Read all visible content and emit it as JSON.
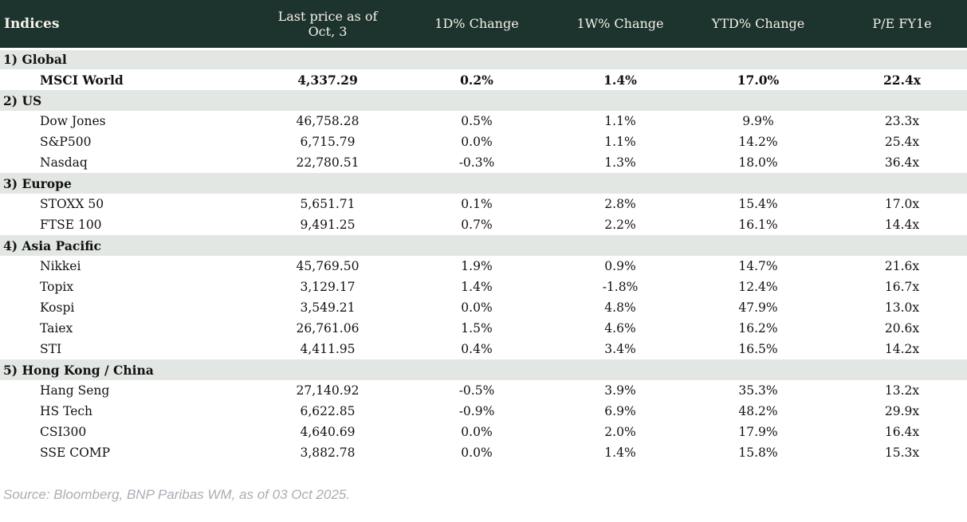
{
  "table": {
    "columns": [
      "Indices",
      "Last price as of Oct, 3",
      "1D% Change",
      "1W% Change",
      "YTD% Change",
      "P/E FY1e"
    ],
    "sections": [
      {
        "label": "1) Global",
        "rows": [
          {
            "name": "MSCI World",
            "price": "4,337.29",
            "d1": "0.2%",
            "w1": "1.4%",
            "ytd": "17.0%",
            "pe": "22.4x",
            "emphasis": true
          }
        ]
      },
      {
        "label": "2) US",
        "rows": [
          {
            "name": "Dow Jones",
            "price": "46,758.28",
            "d1": "0.5%",
            "w1": "1.1%",
            "ytd": "9.9%",
            "pe": "23.3x"
          },
          {
            "name": "S&P500",
            "price": "6,715.79",
            "d1": "0.0%",
            "w1": "1.1%",
            "ytd": "14.2%",
            "pe": "25.4x"
          },
          {
            "name": "Nasdaq",
            "price": "22,780.51",
            "d1": "-0.3%",
            "w1": "1.3%",
            "ytd": "18.0%",
            "pe": "36.4x"
          }
        ]
      },
      {
        "label": "3) Europe",
        "rows": [
          {
            "name": "STOXX 50",
            "price": "5,651.71",
            "d1": "0.1%",
            "w1": "2.8%",
            "ytd": "15.4%",
            "pe": "17.0x"
          },
          {
            "name": "FTSE 100",
            "price": "9,491.25",
            "d1": "0.7%",
            "w1": "2.2%",
            "ytd": "16.1%",
            "pe": "14.4x"
          }
        ]
      },
      {
        "label": "4) Asia Pacific",
        "rows": [
          {
            "name": "Nikkei",
            "price": "45,769.50",
            "d1": "1.9%",
            "w1": "0.9%",
            "ytd": "14.7%",
            "pe": "21.6x"
          },
          {
            "name": "Topix",
            "price": "3,129.17",
            "d1": "1.4%",
            "w1": "-1.8%",
            "ytd": "12.4%",
            "pe": "16.7x"
          },
          {
            "name": "Kospi",
            "price": "3,549.21",
            "d1": "0.0%",
            "w1": "4.8%",
            "ytd": "47.9%",
            "pe": "13.0x"
          },
          {
            "name": "Taiex",
            "price": "26,761.06",
            "d1": "1.5%",
            "w1": "4.6%",
            "ytd": "16.2%",
            "pe": "20.6x"
          },
          {
            "name": "STI",
            "price": "4,411.95",
            "d1": "0.4%",
            "w1": "3.4%",
            "ytd": "16.5%",
            "pe": "14.2x"
          }
        ]
      },
      {
        "label": "5) Hong Kong / China",
        "rows": [
          {
            "name": "Hang Seng",
            "price": "27,140.92",
            "d1": "-0.5%",
            "w1": "3.9%",
            "ytd": "35.3%",
            "pe": "13.2x"
          },
          {
            "name": "HS Tech",
            "price": "6,622.85",
            "d1": "-0.9%",
            "w1": "6.9%",
            "ytd": "48.2%",
            "pe": "29.9x"
          },
          {
            "name": "CSI300",
            "price": "4,640.69",
            "d1": "0.0%",
            "w1": "2.0%",
            "ytd": "17.9%",
            "pe": "16.4x"
          },
          {
            "name": "SSE COMP",
            "price": "3,882.78",
            "d1": "0.0%",
            "w1": "1.4%",
            "ytd": "15.8%",
            "pe": "15.3x"
          }
        ]
      }
    ]
  },
  "footer": {
    "source": "Source: Bloomberg, BNP Paribas WM, as of 03 Oct 2025."
  },
  "colors": {
    "header_bg": "#1d332d",
    "header_text": "#f6f2e8",
    "section_bg": "#e3e7e3",
    "positive": "#008a00",
    "negative": "#c22b2b"
  }
}
